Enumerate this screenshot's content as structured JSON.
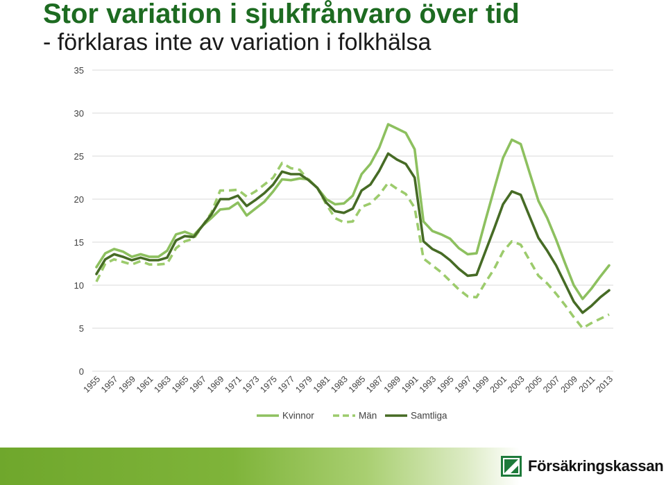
{
  "slide": {
    "title": "Stor variation i sjukfrånvaro över tid",
    "subtitle": "- förklaras inte av variation i folkhälsa"
  },
  "logo": {
    "text": "Försäkringskassan",
    "icon": "forsakringskassan-logo-icon"
  },
  "colors": {
    "title": "#1d6b21",
    "kvinnor": "#8dc05f",
    "man": "#9ccb6c",
    "samtliga": "#466b25",
    "grid": "#d9d9d9",
    "footer_green": "#6fa72c"
  },
  "chart_data": {
    "type": "line",
    "title": "",
    "xlabel": "",
    "ylabel": "",
    "ylim": [
      0,
      35
    ],
    "yticks": [
      "0",
      "5",
      "10",
      "15",
      "20",
      "25",
      "30",
      "35"
    ],
    "xlim": [
      1955,
      2013
    ],
    "grid": "horizontal",
    "legend_position": "bottom",
    "xtick_labels": [
      "1955",
      "1957",
      "1959",
      "1961",
      "1963",
      "1965",
      "1967",
      "1969",
      "1971",
      "1973",
      "1975",
      "1977",
      "1979",
      "1981",
      "1983",
      "1985",
      "1987",
      "1989",
      "1991",
      "1993",
      "1995",
      "1997",
      "1999",
      "2001",
      "2003",
      "2005",
      "2007",
      "2009",
      "2011",
      "2013"
    ],
    "x": [
      1955,
      1956,
      1957,
      1958,
      1959,
      1960,
      1961,
      1962,
      1963,
      1964,
      1965,
      1966,
      1967,
      1968,
      1969,
      1970,
      1971,
      1972,
      1973,
      1974,
      1975,
      1976,
      1977,
      1978,
      1979,
      1980,
      1981,
      1982,
      1983,
      1984,
      1985,
      1986,
      1987,
      1988,
      1989,
      1990,
      1991,
      1992,
      1993,
      1994,
      1995,
      1996,
      1997,
      1998,
      1999,
      2000,
      2001,
      2002,
      2003,
      2004,
      2005,
      2006,
      2007,
      2008,
      2009,
      2010,
      2011,
      2012,
      2013
    ],
    "series": [
      {
        "name": "Kvinnor",
        "style": "solid",
        "values": [
          12.1,
          13.7,
          14.2,
          13.9,
          13.3,
          13.6,
          13.3,
          13.3,
          14.0,
          15.9,
          16.2,
          15.8,
          16.9,
          17.8,
          18.8,
          18.9,
          19.6,
          18.1,
          18.9,
          19.7,
          20.9,
          22.3,
          22.2,
          22.4,
          22.3,
          21.3,
          20.0,
          19.4,
          19.5,
          20.4,
          22.9,
          24.1,
          26.0,
          28.7,
          28.2,
          27.7,
          25.8,
          17.4,
          16.3,
          15.9,
          15.4,
          14.3,
          13.6,
          13.7,
          17.5,
          21.2,
          24.8,
          26.9,
          26.4,
          23.1,
          19.8,
          17.8,
          15.3,
          12.6,
          10.0,
          8.4,
          9.6,
          11.0,
          12.3
        ]
      },
      {
        "name": "Män",
        "style": "dashed",
        "values": [
          10.4,
          12.5,
          13.0,
          12.7,
          12.4,
          12.8,
          12.4,
          12.4,
          12.5,
          14.3,
          15.1,
          15.4,
          16.9,
          18.4,
          21.0,
          21.0,
          21.1,
          20.3,
          20.9,
          21.7,
          22.5,
          24.2,
          23.6,
          23.4,
          22.2,
          21.3,
          19.4,
          17.8,
          17.3,
          17.4,
          19.1,
          19.5,
          20.5,
          21.9,
          21.2,
          20.6,
          19.0,
          13.1,
          12.3,
          11.5,
          10.5,
          9.5,
          8.7,
          8.6,
          10.3,
          11.9,
          13.9,
          15.1,
          14.7,
          12.9,
          11.1,
          10.2,
          9.0,
          7.7,
          6.3,
          5.0,
          5.6,
          6.1,
          6.6
        ]
      },
      {
        "name": "Samtliga",
        "style": "solid",
        "values": [
          11.3,
          13.0,
          13.6,
          13.3,
          12.9,
          13.2,
          12.9,
          12.9,
          13.2,
          15.2,
          15.7,
          15.6,
          16.9,
          18.2,
          20.0,
          20.0,
          20.4,
          19.2,
          19.9,
          20.7,
          21.7,
          23.2,
          22.9,
          22.9,
          22.2,
          21.3,
          19.6,
          18.6,
          18.4,
          18.9,
          21.0,
          21.7,
          23.3,
          25.3,
          24.6,
          24.1,
          22.5,
          15.1,
          14.2,
          13.7,
          12.9,
          11.9,
          11.1,
          11.2,
          13.9,
          16.6,
          19.4,
          20.9,
          20.5,
          18.0,
          15.5,
          14.0,
          12.3,
          10.2,
          8.1,
          6.8,
          7.6,
          8.6,
          9.4
        ]
      }
    ]
  }
}
